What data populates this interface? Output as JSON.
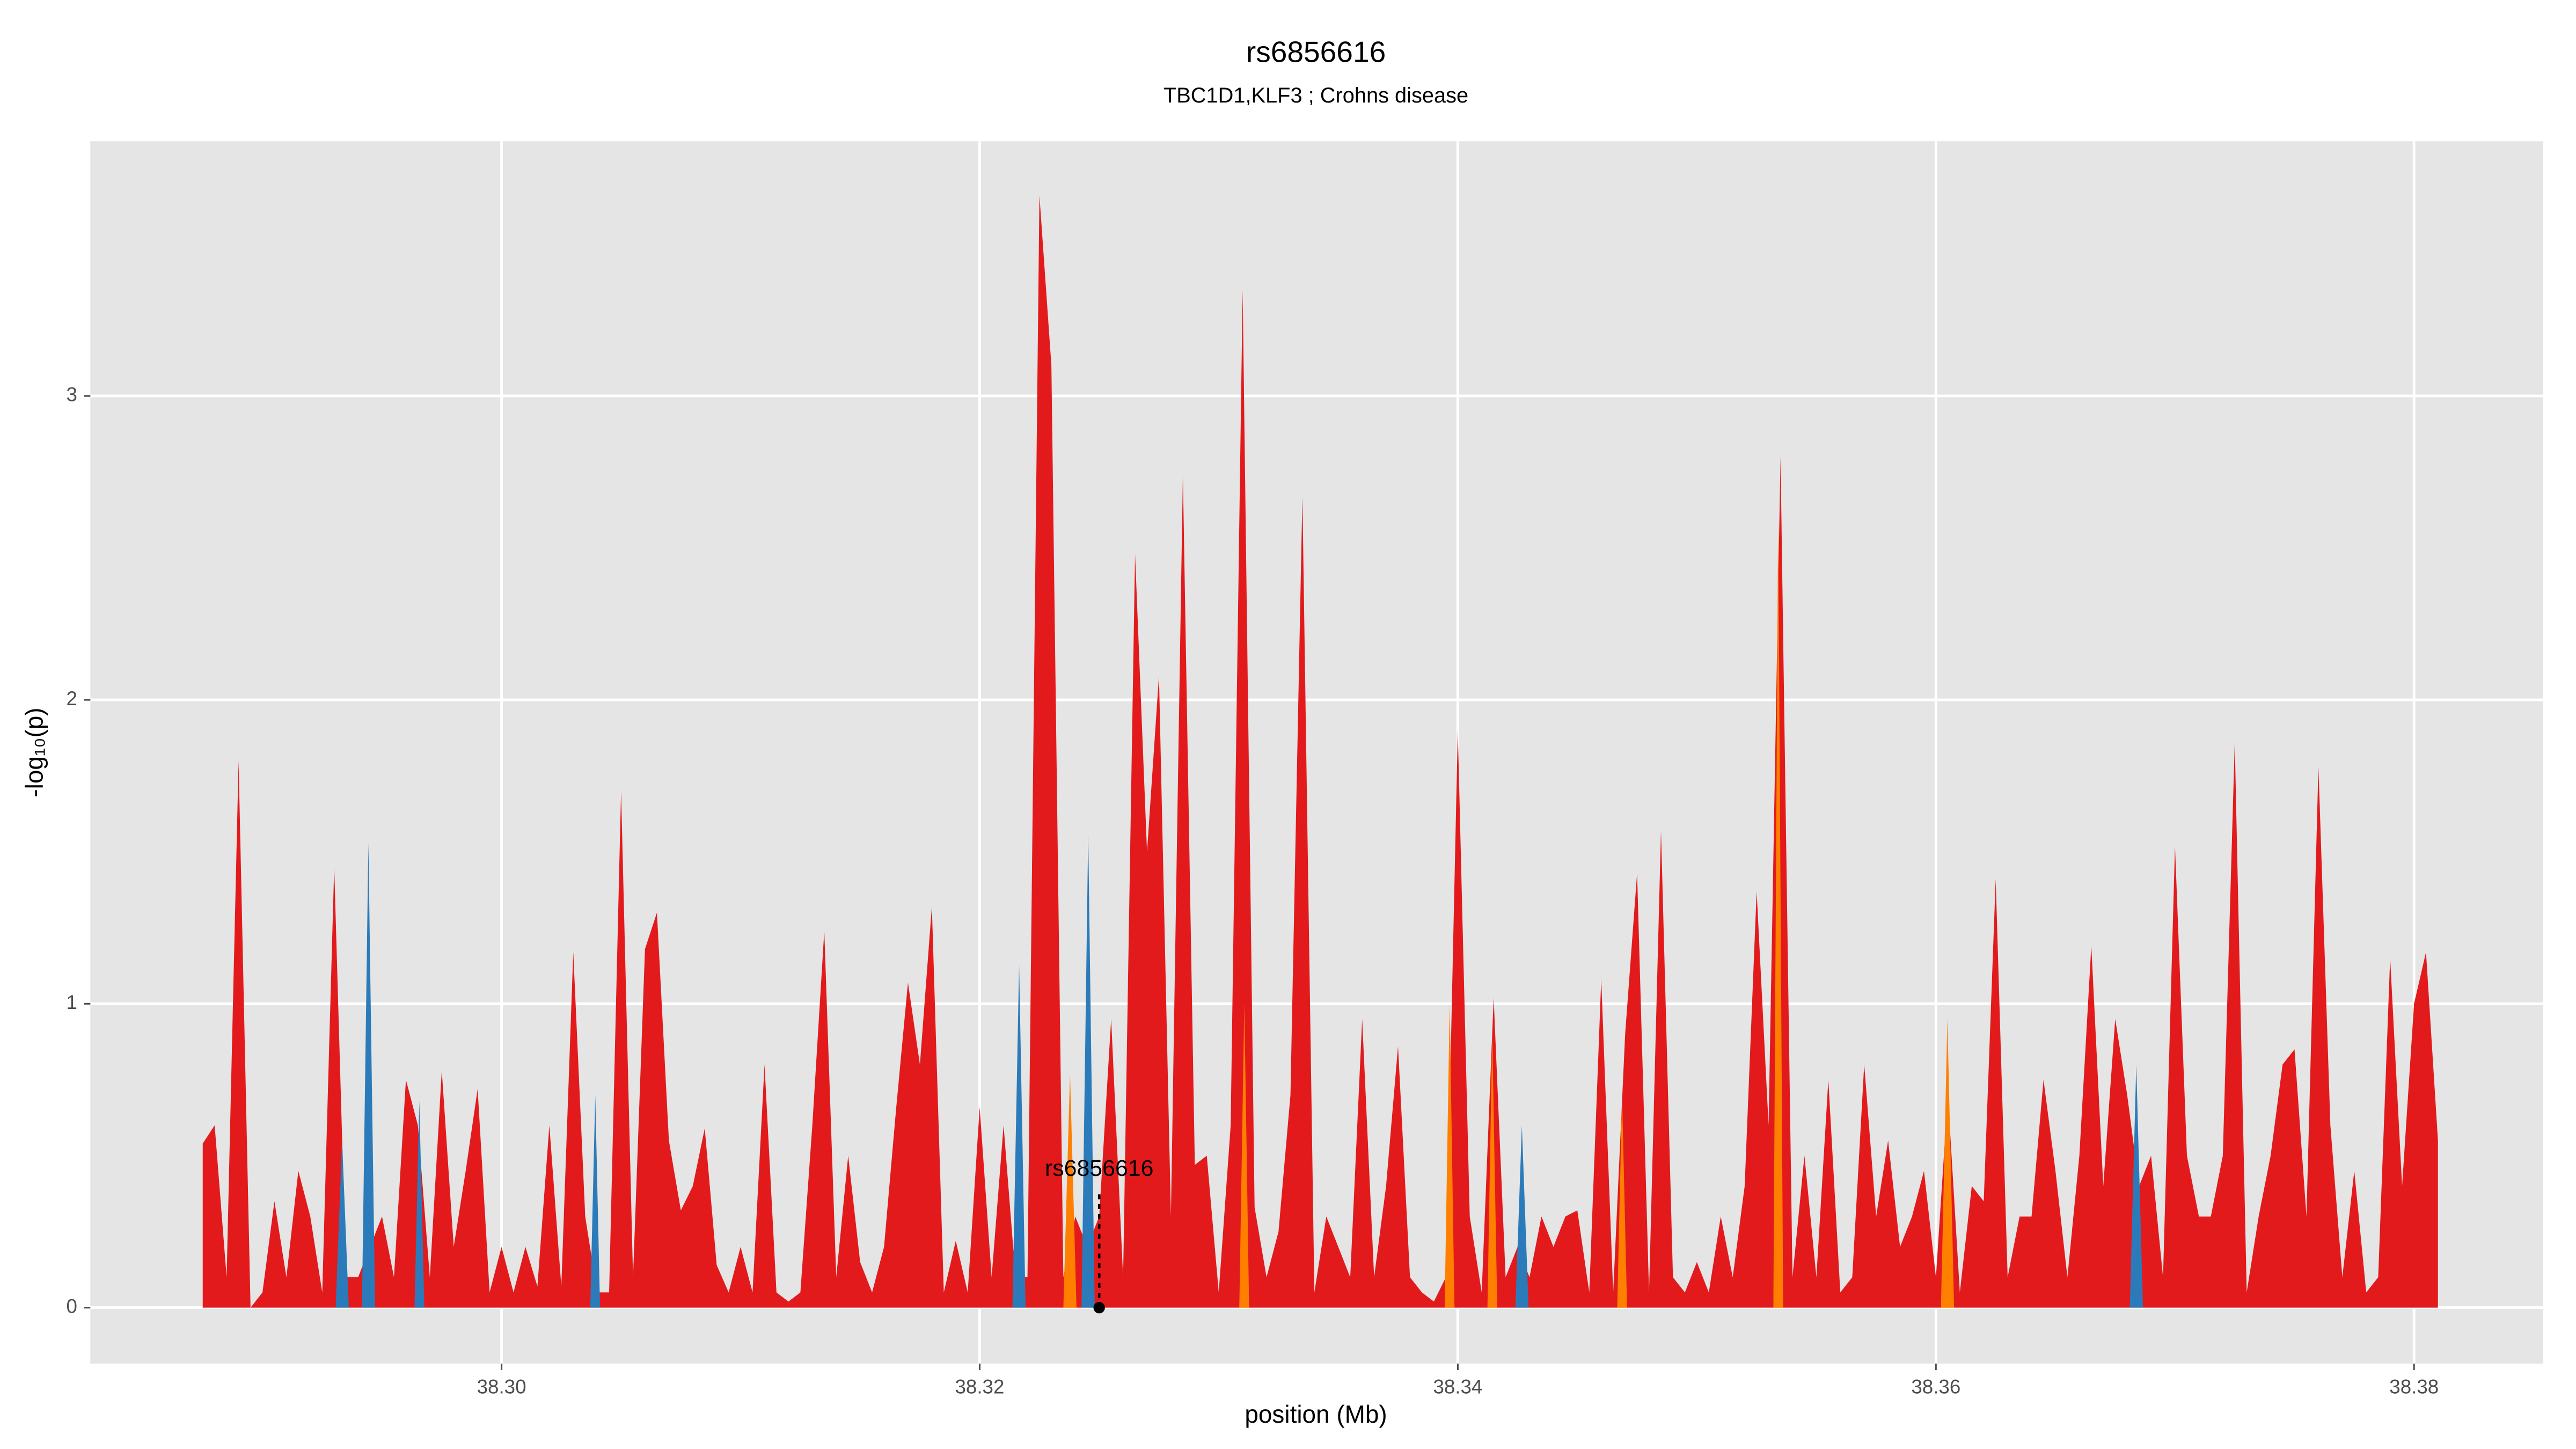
{
  "chart_data": {
    "type": "area",
    "title": "rs6856616",
    "subtitle": "TBC1D1,KLF3 ; Crohns disease",
    "xlabel": "position (Mb)",
    "ylabel": "-log₁₀(p)",
    "xlim": [
      38.2828,
      38.3854
    ],
    "ylim": [
      -0.184,
      3.838
    ],
    "xticks": [
      {
        "value": 38.3,
        "label": "38.30"
      },
      {
        "value": 38.32,
        "label": "38.32"
      },
      {
        "value": 38.34,
        "label": "38.34"
      },
      {
        "value": 38.36,
        "label": "38.36"
      },
      {
        "value": 38.38,
        "label": "38.38"
      }
    ],
    "yticks": [
      0,
      1,
      2,
      3
    ],
    "grid": true,
    "series": [
      {
        "color": "#e31a1c",
        "x": [
          38.2875,
          38.288,
          38.2885,
          38.289,
          38.2895,
          38.29,
          38.2905,
          38.291,
          38.2915,
          38.292,
          38.2925,
          38.293,
          38.2935,
          38.294,
          38.2945,
          38.295,
          38.2955,
          38.296,
          38.2965,
          38.297,
          38.2975,
          38.298,
          38.2985,
          38.299,
          38.2995,
          38.3,
          38.3005,
          38.301,
          38.3015,
          38.302,
          38.3025,
          38.303,
          38.3035,
          38.304,
          38.3045,
          38.305,
          38.3055,
          38.306,
          38.3065,
          38.307,
          38.3075,
          38.308,
          38.3085,
          38.309,
          38.3095,
          38.31,
          38.3105,
          38.311,
          38.3115,
          38.312,
          38.3125,
          38.313,
          38.3135,
          38.314,
          38.3145,
          38.315,
          38.3155,
          38.316,
          38.3165,
          38.317,
          38.3175,
          38.318,
          38.3185,
          38.319,
          38.3195,
          38.32,
          38.3205,
          38.321,
          38.3215,
          38.322,
          38.3225,
          38.323,
          38.3235,
          38.324,
          38.3245,
          38.325,
          38.3255,
          38.326,
          38.3265,
          38.327,
          38.3275,
          38.328,
          38.3285,
          38.329,
          38.3295,
          38.33,
          38.3305,
          38.331,
          38.3315,
          38.332,
          38.3325,
          38.333,
          38.3335,
          38.334,
          38.3345,
          38.335,
          38.3355,
          38.336,
          38.3365,
          38.337,
          38.3375,
          38.338,
          38.3385,
          38.339,
          38.3395,
          38.34,
          38.3405,
          38.341,
          38.3415,
          38.342,
          38.3425,
          38.343,
          38.3435,
          38.344,
          38.3445,
          38.345,
          38.3455,
          38.346,
          38.3465,
          38.347,
          38.3475,
          38.348,
          38.3485,
          38.349,
          38.3495,
          38.35,
          38.3505,
          38.351,
          38.3515,
          38.352,
          38.3525,
          38.353,
          38.3535,
          38.354,
          38.3545,
          38.355,
          38.3555,
          38.356,
          38.3565,
          38.357,
          38.3575,
          38.358,
          38.3585,
          38.359,
          38.3595,
          38.36,
          38.3605,
          38.361,
          38.3615,
          38.362,
          38.3625,
          38.363,
          38.3635,
          38.364,
          38.3645,
          38.365,
          38.3655,
          38.366,
          38.3665,
          38.367,
          38.3675,
          38.368,
          38.3685,
          38.369,
          38.3695,
          38.37,
          38.3705,
          38.371,
          38.3715,
          38.372,
          38.3725,
          38.373,
          38.3735,
          38.374,
          38.3745,
          38.375,
          38.3755,
          38.376,
          38.3765,
          38.377,
          38.3775,
          38.378,
          38.3785,
          38.379,
          38.3795,
          38.38,
          38.3805,
          38.381
        ],
        "values": [
          0.54,
          0.6,
          0.1,
          1.8,
          0,
          0.05,
          0.35,
          0.1,
          0.45,
          0.3,
          0.05,
          1.45,
          0.1,
          0.1,
          0.2,
          0.3,
          0.1,
          0.75,
          0.6,
          0.1,
          0.78,
          0.2,
          0.45,
          0.72,
          0.05,
          0.2,
          0.05,
          0.2,
          0.07,
          0.6,
          0.07,
          1.17,
          0.3,
          0.05,
          0.05,
          1.7,
          0.1,
          1.18,
          1.3,
          0.55,
          0.32,
          0.4,
          0.59,
          0.14,
          0.05,
          0.2,
          0.05,
          0.8,
          0.05,
          0.02,
          0.05,
          0.6,
          1.24,
          0.1,
          0.5,
          0.15,
          0.05,
          0.2,
          0.65,
          1.07,
          0.8,
          1.32,
          0.05,
          0.22,
          0.05,
          0.66,
          0.1,
          0.6,
          0.1,
          0.1,
          3.66,
          3.1,
          0.1,
          0.3,
          0.2,
          0.3,
          0.95,
          0.1,
          2.48,
          1.5,
          2.08,
          0.3,
          2.74,
          0.47,
          0.5,
          0.05,
          0.6,
          3.35,
          0.33,
          0.1,
          0.25,
          0.7,
          2.67,
          0.05,
          0.3,
          0.2,
          0.1,
          0.95,
          0.1,
          0.4,
          0.86,
          0.1,
          0.05,
          0.02,
          0.1,
          1.9,
          0.3,
          0.05,
          1.02,
          0.1,
          0.2,
          0.1,
          0.3,
          0.2,
          0.3,
          0.32,
          0.05,
          1.08,
          0.05,
          0.9,
          1.43,
          0.05,
          1.57,
          0.1,
          0.05,
          0.15,
          0.05,
          0.3,
          0.1,
          0.4,
          1.37,
          0.6,
          2.8,
          0.1,
          0.5,
          0.1,
          0.75,
          0.05,
          0.1,
          0.8,
          0.3,
          0.55,
          0.2,
          0.3,
          0.45,
          0.1,
          0.7,
          0.05,
          0.4,
          0.35,
          1.41,
          0.1,
          0.3,
          0.3,
          0.75,
          0.45,
          0.1,
          0.5,
          1.19,
          0.4,
          0.95,
          0.7,
          0.4,
          0.5,
          0.1,
          1.52,
          0.5,
          0.3,
          0.3,
          0.5,
          1.86,
          0.05,
          0.3,
          0.5,
          0.8,
          0.85,
          0.3,
          1.78,
          0.6,
          0.1,
          0.45,
          0.05,
          0.1,
          1.15,
          0.4,
          1.0,
          1.17,
          0.55
        ]
      },
      {
        "color": "#2b7bba",
        "x": [
          38.29306,
          38.29333,
          38.29361,
          38.29361,
          38.29416,
          38.29443,
          38.29471,
          38.29471,
          38.29636,
          38.29656,
          38.29677,
          38.29677,
          38.30371,
          38.30392,
          38.30412,
          38.30412,
          38.32137,
          38.32165,
          38.32192,
          38.32192,
          38.32426,
          38.32454,
          38.32481,
          38.32481,
          38.34241,
          38.34268,
          38.34296,
          38.34296,
          38.36811,
          38.36838,
          38.36866
        ],
        "values": [
          0,
          0.55,
          0,
          null,
          0,
          1.53,
          0,
          null,
          0,
          0.68,
          0,
          null,
          0,
          0.7,
          0,
          null,
          0,
          1.13,
          0,
          null,
          0,
          1.56,
          0,
          null,
          0,
          0.6,
          0,
          null,
          0,
          0.8,
          0
        ]
      },
      {
        "color": "#ff7f00",
        "x": [
          38.3235,
          38.32378,
          38.32405,
          38.32405,
          38.33086,
          38.33107,
          38.33127,
          38.33127,
          38.33945,
          38.33966,
          38.33986,
          38.33986,
          38.34124,
          38.34144,
          38.34165,
          38.34165,
          38.34667,
          38.34687,
          38.34708,
          38.34708,
          38.3532,
          38.3534,
          38.35361,
          38.35361,
          38.36021,
          38.36048,
          38.36076
        ],
        "values": [
          0,
          0.77,
          0,
          null,
          0,
          1.0,
          0,
          null,
          0,
          1.0,
          0,
          null,
          0,
          0.9,
          0,
          null,
          0,
          0.7,
          0,
          null,
          0,
          2.6,
          0,
          null,
          0,
          0.95,
          0
        ]
      }
    ],
    "annotation": {
      "text": "rs6856616",
      "x": 38.325,
      "y": 0
    }
  }
}
